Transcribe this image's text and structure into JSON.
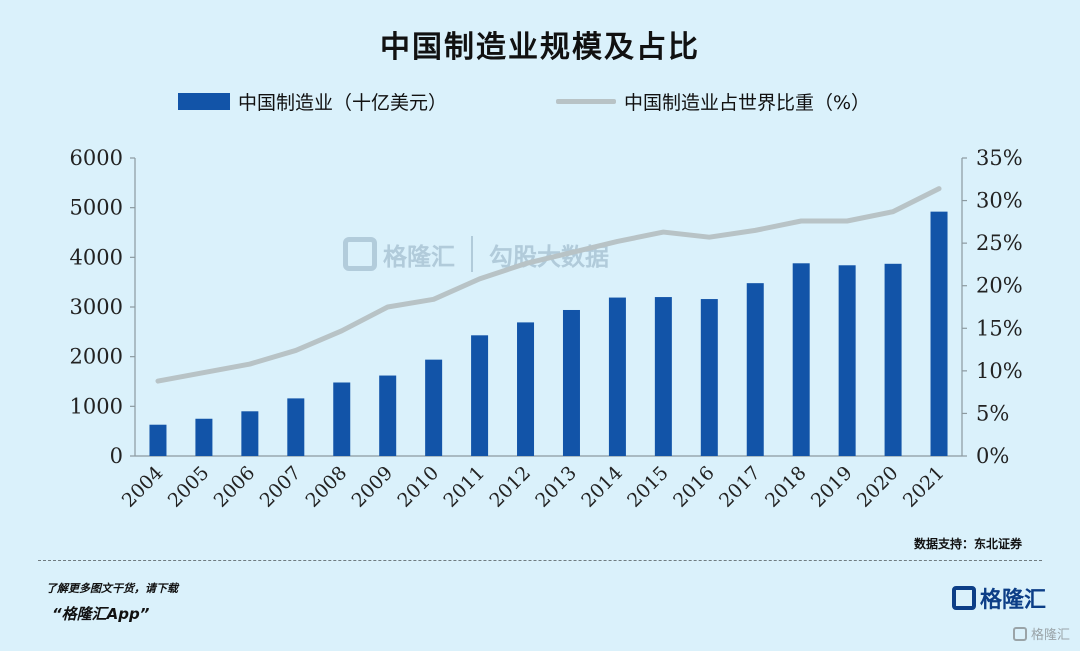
{
  "chart_data": {
    "type": "bar",
    "title": "中国制造业规模及占比",
    "categories": [
      "2004",
      "2005",
      "2006",
      "2007",
      "2008",
      "2009",
      "2010",
      "2011",
      "2012",
      "2013",
      "2014",
      "2015",
      "2016",
      "2017",
      "2018",
      "2019",
      "2020",
      "2021"
    ],
    "series": [
      {
        "name": "中国制造业（十亿美元）",
        "type": "bar",
        "axis": "left",
        "color": "#1254a8",
        "values": [
          630,
          750,
          900,
          1160,
          1480,
          1620,
          1940,
          2430,
          2690,
          2940,
          3190,
          3200,
          3160,
          3480,
          3880,
          3840,
          3870,
          4920
        ]
      },
      {
        "name": "中国制造业占世界比重（%）",
        "type": "line",
        "axis": "right",
        "color": "#b8c3c6",
        "values": [
          8.8,
          9.8,
          10.8,
          12.4,
          14.7,
          17.5,
          18.4,
          20.8,
          22.6,
          23.9,
          25.2,
          26.3,
          25.7,
          26.5,
          27.6,
          27.6,
          28.7,
          31.4
        ]
      }
    ],
    "yAxisLeft": {
      "min": 0,
      "max": 6000,
      "ticks": [
        "0",
        "1000",
        "2000",
        "3000",
        "4000",
        "5000",
        "6000"
      ]
    },
    "yAxisRight": {
      "min": 0,
      "max": 35,
      "ticks": [
        "0%",
        "5%",
        "10%",
        "15%",
        "20%",
        "25%",
        "30%",
        "35%"
      ]
    },
    "grid": false,
    "legend_position": "top"
  },
  "watermark": {
    "brand": "格隆汇",
    "brand2": "勾股大数据"
  },
  "source": "数据支持：东北证券",
  "footer": {
    "line1": "了解更多图文干货，请下载",
    "line2": "“格隆汇App”"
  },
  "brand_logo": "格隆汇",
  "corner_mark": "格隆汇"
}
